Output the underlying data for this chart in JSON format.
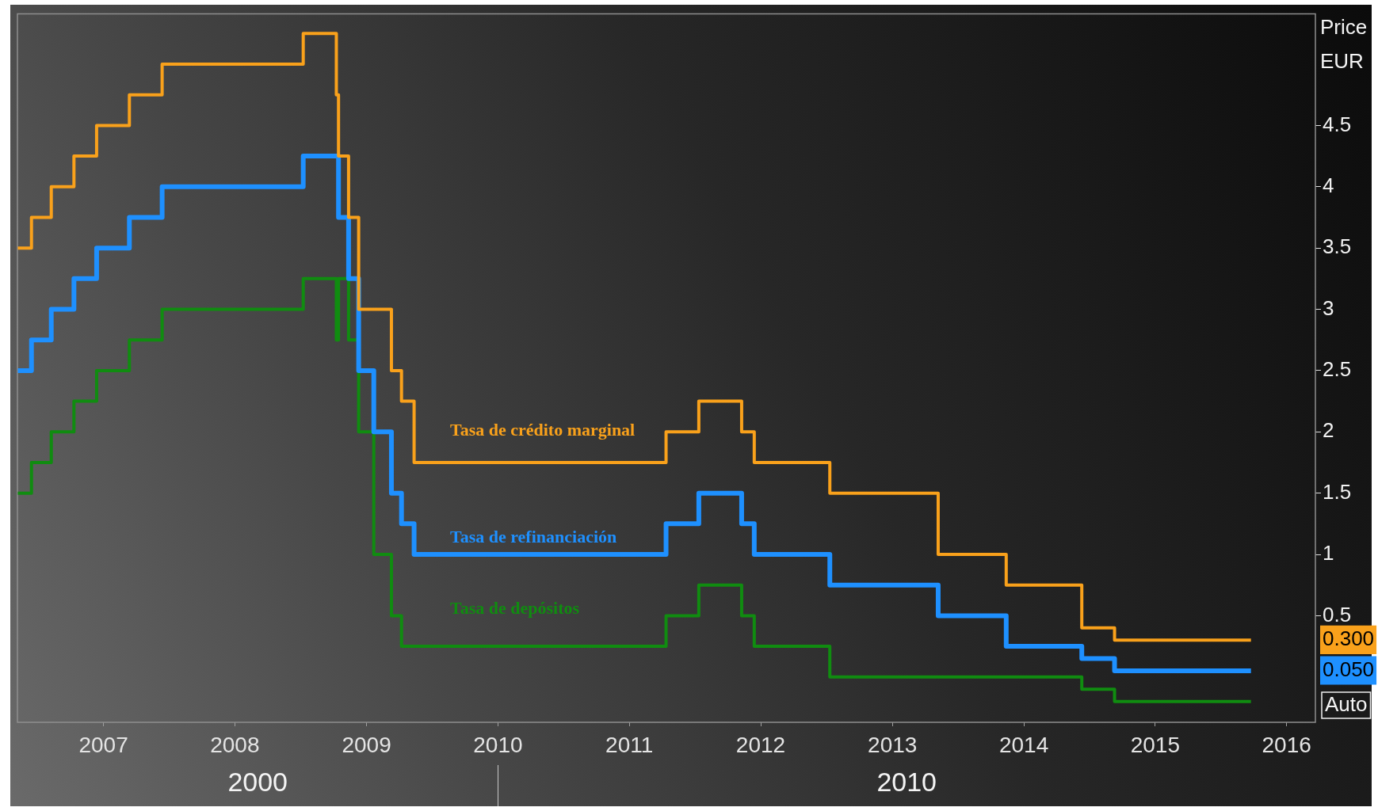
{
  "chart_data": {
    "type": "step",
    "ylabel": "Price EUR",
    "x": [
      "2006-05-08",
      "2006-06-15",
      "2006-08-09",
      "2006-10-11",
      "2006-12-13",
      "2007-03-14",
      "2007-06-13",
      "2008-07-09",
      "2008-10-09",
      "2008-10-15",
      "2008-11-12",
      "2008-12-10",
      "2009-01-21",
      "2009-03-11",
      "2009-04-08",
      "2009-05-13",
      "2011-04-13",
      "2011-07-13",
      "2011-11-09",
      "2011-12-14",
      "2012-07-11",
      "2013-05-08",
      "2013-11-13",
      "2014-06-11",
      "2014-09-10",
      "2015-09-24"
    ],
    "xlim": [
      "2006-05-07",
      "2016-03-21"
    ],
    "xticks": [
      "2007",
      "2008",
      "2009",
      "2010",
      "2011",
      "2012",
      "2013",
      "2014",
      "2015",
      "2016"
    ],
    "ylim": [
      -0.37,
      5.41
    ],
    "yticks": [
      {
        "value": 0.05,
        "label": "0.050"
      },
      {
        "value": 0.3,
        "label": "0.300"
      },
      0.5,
      1,
      1.5,
      2,
      2.5,
      3,
      3.5,
      4,
      4.5
    ],
    "marker": "none",
    "line_style": "solid",
    "series": [
      {
        "name": "Tasa de crédito marginal",
        "color": "#f9a11b",
        "values": [
          3.5,
          3.75,
          4,
          4.25,
          4.5,
          4.75,
          5,
          5.25,
          4.75,
          4.25,
          3.75,
          3,
          3,
          2.5,
          2.25,
          1.75,
          2,
          2.25,
          2,
          1.75,
          1.5,
          1,
          0.75,
          0.4,
          0.3,
          0.3
        ]
      },
      {
        "name": "Tasa de refinanciación",
        "color": "#1e90ff",
        "values": [
          2.5,
          2.75,
          3,
          3.25,
          3.5,
          3.75,
          4,
          4.25,
          4.25,
          3.75,
          3.25,
          2.5,
          2,
          1.5,
          1.25,
          1,
          1.25,
          1.5,
          1.25,
          1,
          0.75,
          0.5,
          0.25,
          0.15,
          0.05,
          0.05
        ]
      },
      {
        "name": "Tasa de depósitos",
        "color": "#108c10",
        "values": [
          1.5,
          1.75,
          2,
          2.25,
          2.5,
          2.75,
          3,
          3.25,
          2.75,
          3.25,
          2.75,
          2,
          1,
          0.5,
          0.25,
          0.25,
          0.5,
          0.75,
          0.5,
          0.25,
          0,
          0,
          0,
          -0.1,
          -0.2,
          -0.2
        ]
      }
    ],
    "annotations": [
      "2000",
      "2010",
      "Auto"
    ]
  }
}
